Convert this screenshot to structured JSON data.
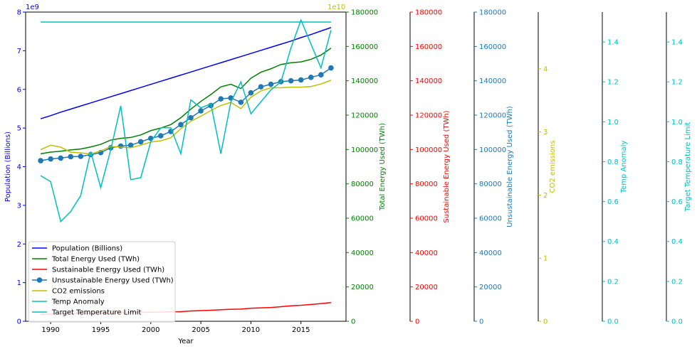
{
  "chart_data": {
    "type": "line",
    "title": "",
    "xlabel": "Year",
    "x_ticks": [
      "1990",
      "1995",
      "2000",
      "2005",
      "2010",
      "2015"
    ],
    "xlim": [
      1987.5,
      2019.5
    ],
    "x": [
      1989,
      1990,
      1991,
      1992,
      1993,
      1994,
      1995,
      1996,
      1997,
      1998,
      1999,
      2000,
      2001,
      2002,
      2003,
      2004,
      2005,
      2006,
      2007,
      2008,
      2009,
      2010,
      2011,
      2012,
      2013,
      2014,
      2015,
      2016,
      2017,
      2018
    ],
    "grid": false,
    "legend_position": "lower-left",
    "axes": [
      {
        "id": "pop",
        "label": "Population (Billions)",
        "color": "#0000ff",
        "side": "left",
        "range": [
          0,
          8000000000.0
        ],
        "ticks": [
          0,
          1000000000.0,
          2000000000.0,
          3000000000.0,
          4000000000.0,
          5000000000.0,
          6000000000.0,
          7000000000.0,
          8000000000.0
        ],
        "tick_labels": [
          "0",
          "1",
          "2",
          "3",
          "4",
          "5",
          "6",
          "7",
          "8"
        ],
        "offset_text": "1e9"
      },
      {
        "id": "total",
        "label": "Total Energy Used (TWh)",
        "color": "#008000",
        "side": "right",
        "range": [
          0,
          180000
        ],
        "ticks": [
          0,
          20000,
          40000,
          60000,
          80000,
          100000,
          120000,
          140000,
          160000,
          180000
        ],
        "tick_labels": [
          "0",
          "20000",
          "40000",
          "60000",
          "80000",
          "100000",
          "120000",
          "140000",
          "160000",
          "180000"
        ]
      },
      {
        "id": "sust",
        "label": "Sustainable Energy Used (TWh)",
        "color": "#ff0000",
        "side": "right",
        "range": [
          0,
          180000
        ],
        "ticks": [
          0,
          20000,
          40000,
          60000,
          80000,
          100000,
          120000,
          140000,
          160000,
          180000
        ],
        "tick_labels": [
          "0",
          "20000",
          "40000",
          "60000",
          "80000",
          "100000",
          "120000",
          "140000",
          "160000",
          "180000"
        ]
      },
      {
        "id": "unsust",
        "label": "Unsustainable Energy Used (TWh)",
        "color": "#1f77b4",
        "side": "right",
        "range": [
          0,
          180000
        ],
        "ticks": [
          0,
          20000,
          40000,
          60000,
          80000,
          100000,
          120000,
          140000,
          160000,
          180000
        ],
        "tick_labels": [
          "0",
          "20000",
          "40000",
          "60000",
          "80000",
          "100000",
          "120000",
          "140000",
          "160000",
          "180000"
        ]
      },
      {
        "id": "co2",
        "label": "CO2 emissions",
        "color": "#bfbf00",
        "side": "right",
        "range": [
          0,
          4.9
        ],
        "ticks": [
          0,
          1,
          2,
          3,
          4
        ],
        "tick_labels": [
          "0",
          "1",
          "2",
          "3",
          "4"
        ],
        "offset_text": "1e10"
      },
      {
        "id": "temp",
        "label": "Temp Anomaly",
        "color": "#00bfbf",
        "side": "right",
        "range": [
          0,
          1.55
        ],
        "ticks": [
          0,
          0.2,
          0.4,
          0.6,
          0.8,
          1.0,
          1.2,
          1.4
        ],
        "tick_labels": [
          "0.0",
          "0.2",
          "0.4",
          "0.6",
          "0.8",
          "1.0",
          "1.2",
          "1.4"
        ]
      },
      {
        "id": "limit",
        "label": "Target Temperature Limit",
        "color": "#00bfbf",
        "side": "right",
        "range": [
          0,
          1.55
        ],
        "ticks": [
          0,
          0.2,
          0.4,
          0.6,
          0.8,
          1.0,
          1.2,
          1.4
        ],
        "tick_labels": [
          "0.0",
          "0.2",
          "0.4",
          "0.6",
          "0.8",
          "1.0",
          "1.2",
          "1.4"
        ]
      }
    ],
    "series": [
      {
        "name": "Population (Billions)",
        "axis": "pop",
        "color": "#0000ff",
        "marker": false,
        "values": [
          5240000000.0,
          5320000000.0,
          5410000000.0,
          5490000000.0,
          5570000000.0,
          5650000000.0,
          5730000000.0,
          5810000000.0,
          5890000000.0,
          5970000000.0,
          6050000000.0,
          6130000000.0,
          6210000000.0,
          6290000000.0,
          6370000000.0,
          6450000000.0,
          6530000000.0,
          6610000000.0,
          6690000000.0,
          6770000000.0,
          6850000000.0,
          6930000000.0,
          7010000000.0,
          7090000000.0,
          7170000000.0,
          7250000000.0,
          7340000000.0,
          7420000000.0,
          7510000000.0,
          7600000000.0
        ]
      },
      {
        "name": "Total Energy Used (TWh)",
        "axis": "total",
        "color": "#008000",
        "marker": false,
        "values": [
          97500,
          98500,
          99000,
          99800,
          100300,
          101500,
          103000,
          105500,
          106500,
          107000,
          108500,
          111000,
          112500,
          114500,
          118500,
          123500,
          128000,
          132000,
          136500,
          138000,
          135500,
          141500,
          145000,
          147000,
          149500,
          150500,
          151000,
          152500,
          155000,
          159000
        ]
      },
      {
        "name": "Sustainable Energy Used (TWh)",
        "axis": "sust",
        "color": "#ff0000",
        "marker": false,
        "values": [
          4000,
          4200,
          4300,
          4500,
          4600,
          4700,
          4800,
          4900,
          5000,
          5100,
          5200,
          5300,
          5400,
          5500,
          5600,
          6000,
          6200,
          6400,
          6700,
          7000,
          7100,
          7600,
          7800,
          8000,
          8500,
          9000,
          9300,
          9800,
          10300,
          10900
        ]
      },
      {
        "name": "Unsustainable Energy Used (TWh)",
        "axis": "unsust",
        "color": "#1f77b4",
        "marker": true,
        "values": [
          93500,
          94500,
          95000,
          95800,
          96000,
          97000,
          98200,
          101000,
          102000,
          102500,
          104500,
          106500,
          108000,
          110500,
          114500,
          118500,
          122500,
          125600,
          129500,
          130000,
          127500,
          133000,
          136500,
          138000,
          139500,
          140000,
          140500,
          142000,
          143500,
          147500
        ]
      },
      {
        "name": "CO2 emissions",
        "axis": "co2",
        "color": "#bfbf00",
        "marker": false,
        "values": [
          2.72,
          2.79,
          2.76,
          2.68,
          2.67,
          2.65,
          2.7,
          2.77,
          2.76,
          2.75,
          2.79,
          2.84,
          2.86,
          2.91,
          3.05,
          3.17,
          3.25,
          3.34,
          3.42,
          3.47,
          3.37,
          3.55,
          3.65,
          3.7,
          3.7,
          3.71,
          3.71,
          3.72,
          3.76,
          3.82
        ]
      },
      {
        "name": "Temp Anomaly",
        "axis": "temp",
        "color": "#00bfbf",
        "marker": false,
        "values": [
          0.73,
          0.7,
          0.5,
          0.55,
          0.63,
          0.85,
          0.67,
          0.86,
          1.08,
          0.71,
          0.72,
          0.9,
          0.97,
          0.97,
          0.84,
          1.11,
          1.07,
          1.09,
          0.84,
          1.1,
          1.2,
          1.04,
          1.1,
          1.16,
          1.2,
          1.37,
          1.51,
          1.39,
          1.27,
          1.46
        ]
      },
      {
        "name": "Target Temperature Limit",
        "axis": "limit",
        "color": "#00bfbf",
        "marker": false,
        "values": [
          1.5,
          1.5,
          1.5,
          1.5,
          1.5,
          1.5,
          1.5,
          1.5,
          1.5,
          1.5,
          1.5,
          1.5,
          1.5,
          1.5,
          1.5,
          1.5,
          1.5,
          1.5,
          1.5,
          1.5,
          1.5,
          1.5,
          1.5,
          1.5,
          1.5,
          1.5,
          1.5,
          1.5,
          1.5,
          1.5
        ]
      }
    ]
  }
}
